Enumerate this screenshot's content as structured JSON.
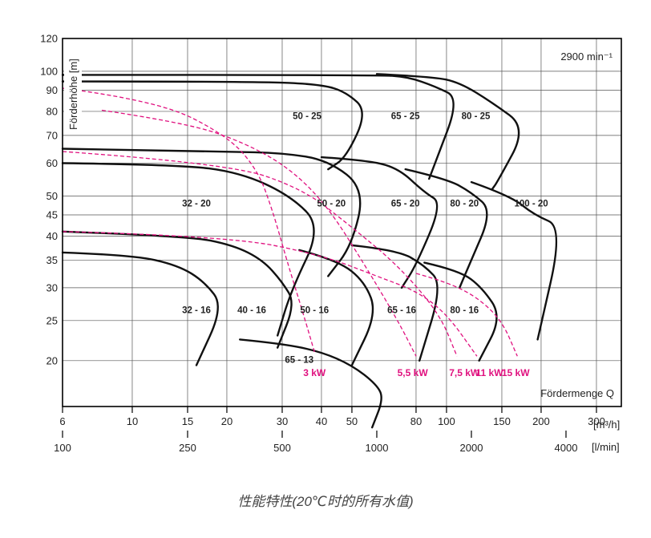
{
  "caption": "性能特性(20℃时的所有水值)",
  "chart_data": {
    "type": "line",
    "title": "",
    "speed_label": "2900 min⁻¹",
    "ylabel": "Förderhöhe [m]",
    "xlabel": "Fördermenge Q",
    "x_unit_primary": "[m³/h]",
    "x_unit_secondary": "[l/min]",
    "ylim": [
      15.5,
      120
    ],
    "xlim_m3h": [
      6,
      360
    ],
    "y_scale": "log",
    "x_scale": "log",
    "grid": true,
    "y_ticks": [
      120,
      100,
      90,
      80,
      70,
      60,
      50,
      45,
      40,
      35,
      30,
      25,
      20
    ],
    "x_ticks_primary": [
      6,
      10,
      15,
      20,
      30,
      40,
      50,
      80,
      100,
      150,
      200,
      300
    ],
    "x_ticks_primary_labels": [
      "6",
      "10",
      "15",
      "20",
      "30",
      "40",
      "50",
      "80",
      "100",
      "150",
      "200",
      "300"
    ],
    "x_ticks_secondary": [
      100,
      250,
      500,
      1000,
      2000,
      4000
    ],
    "x_ticks_secondary_labels": [
      "100",
      "250",
      "500",
      "1000",
      "2000",
      "4000"
    ],
    "pump_labels": [
      {
        "name": "50 - 25",
        "q": 36,
        "h": 78
      },
      {
        "name": "65 - 25",
        "q": 74,
        "h": 78
      },
      {
        "name": "80 - 25",
        "q": 124,
        "h": 78
      },
      {
        "name": "32 - 20",
        "q": 16,
        "h": 48
      },
      {
        "name": "50 - 20",
        "q": 43,
        "h": 48
      },
      {
        "name": "65 - 20",
        "q": 74,
        "h": 48
      },
      {
        "name": "80 - 20",
        "q": 114,
        "h": 48
      },
      {
        "name": "100 - 20",
        "q": 186,
        "h": 48
      },
      {
        "name": "32 - 16",
        "q": 16,
        "h": 26.5
      },
      {
        "name": "40 - 16",
        "q": 24,
        "h": 26.5
      },
      {
        "name": "50 - 16",
        "q": 38,
        "h": 26.5
      },
      {
        "name": "65 - 16",
        "q": 72,
        "h": 26.5
      },
      {
        "name": "80 - 16",
        "q": 114,
        "h": 26.5
      },
      {
        "name": "65 - 13",
        "q": 34,
        "h": 20.1
      }
    ],
    "power_labels": [
      {
        "name": "3 kW",
        "q": 38,
        "h": 18.7
      },
      {
        "name": "5,5 kW",
        "q": 78,
        "h": 18.7
      },
      {
        "name": "7,5 kW",
        "q": 114,
        "h": 18.7
      },
      {
        "name": "11 kW",
        "q": 137,
        "h": 18.7
      },
      {
        "name": "15 kW",
        "q": 166,
        "h": 18.7
      }
    ],
    "series": [
      {
        "name": "32 - 16",
        "kind": "pump",
        "points": [
          [
            6,
            36.5
          ],
          [
            10,
            36
          ],
          [
            14,
            34
          ],
          [
            17,
            31
          ],
          [
            19.5,
            27
          ],
          [
            16,
            19.5
          ]
        ]
      },
      {
        "name": "40 - 16",
        "kind": "pump",
        "points": [
          [
            6,
            41
          ],
          [
            15,
            40
          ],
          [
            21,
            38
          ],
          [
            26,
            35
          ],
          [
            30,
            31
          ],
          [
            33,
            27.5
          ],
          [
            29,
            21.5
          ]
        ]
      },
      {
        "name": "50 - 16",
        "kind": "pump",
        "points": [
          [
            22,
            22.5
          ],
          [
            30,
            22
          ],
          [
            40,
            21
          ],
          [
            50,
            19.5
          ],
          [
            60,
            17.5
          ],
          [
            63,
            16.2
          ],
          [
            58,
            13.8
          ]
        ]
      },
      {
        "name": "50 - 16 top",
        "kind": "pump",
        "points": [
          [
            34,
            37
          ],
          [
            45,
            35
          ],
          [
            55,
            31
          ],
          [
            60,
            26
          ],
          [
            50,
            19.5
          ]
        ]
      },
      {
        "name": "65 - 16",
        "kind": "pump",
        "points": [
          [
            50,
            38
          ],
          [
            70,
            37
          ],
          [
            85,
            34
          ],
          [
            97,
            30.5
          ],
          [
            82,
            20
          ]
        ]
      },
      {
        "name": "80 - 16",
        "kind": "pump",
        "points": [
          [
            85,
            34.5
          ],
          [
            110,
            33
          ],
          [
            130,
            30
          ],
          [
            150,
            25.5
          ],
          [
            127,
            20
          ]
        ]
      },
      {
        "name": "32 - 20",
        "kind": "pump",
        "points": [
          [
            6,
            60
          ],
          [
            14,
            59.5
          ],
          [
            22,
            57
          ],
          [
            32,
            50
          ],
          [
            40,
            42
          ],
          [
            32,
            29.5
          ],
          [
            29,
            23
          ]
        ]
      },
      {
        "name": "50 - 20",
        "kind": "pump",
        "points": [
          [
            6,
            65
          ],
          [
            20,
            64
          ],
          [
            30,
            63.5
          ],
          [
            42,
            61
          ],
          [
            55,
            52
          ],
          [
            50,
            38
          ],
          [
            42,
            32
          ]
        ]
      },
      {
        "name": "65 - 20",
        "kind": "pump",
        "points": [
          [
            40,
            62
          ],
          [
            55,
            61
          ],
          [
            70,
            58.5
          ],
          [
            85,
            51
          ],
          [
            97,
            48
          ],
          [
            80,
            34
          ],
          [
            72,
            30
          ]
        ]
      },
      {
        "name": "80 - 20",
        "kind": "pump",
        "points": [
          [
            74,
            58
          ],
          [
            100,
            55
          ],
          [
            120,
            51
          ],
          [
            140,
            46
          ],
          [
            118,
            34
          ],
          [
            110,
            30
          ]
        ]
      },
      {
        "name": "100 - 20",
        "kind": "pump",
        "points": [
          [
            120,
            54
          ],
          [
            160,
            50
          ],
          [
            190,
            45
          ],
          [
            235,
            42
          ],
          [
            195,
            22.5
          ]
        ]
      },
      {
        "name": "50 - 25",
        "kind": "pump",
        "points": [
          [
            6,
            94.5
          ],
          [
            25,
            94.5
          ],
          [
            40,
            93
          ],
          [
            48,
            89
          ],
          [
            56,
            80
          ],
          [
            48,
            62
          ],
          [
            42,
            58
          ]
        ]
      },
      {
        "name": "65 - 25",
        "kind": "pump",
        "points": [
          [
            6,
            98
          ],
          [
            60,
            98
          ],
          [
            75,
            97
          ],
          [
            92,
            92
          ],
          [
            110,
            86
          ],
          [
            92,
            60
          ],
          [
            88,
            55
          ]
        ]
      },
      {
        "name": "80 - 25",
        "kind": "pump",
        "points": [
          [
            60,
            98.5
          ],
          [
            90,
            97
          ],
          [
            110,
            94
          ],
          [
            140,
            84
          ],
          [
            180,
            73
          ],
          [
            145,
            54
          ],
          [
            140,
            52
          ]
        ]
      },
      {
        "name": "3 kW",
        "kind": "power",
        "points": [
          [
            6,
            91
          ],
          [
            12,
            85
          ],
          [
            20,
            70
          ],
          [
            25,
            58
          ],
          [
            28,
            46
          ],
          [
            31,
            35
          ],
          [
            35,
            26
          ],
          [
            38,
            21
          ]
        ]
      },
      {
        "name": "5,5 kW",
        "kind": "power",
        "points": [
          [
            8,
            80.5
          ],
          [
            15,
            75
          ],
          [
            23,
            67
          ],
          [
            32,
            58
          ],
          [
            42,
            47
          ],
          [
            55,
            34
          ],
          [
            70,
            25
          ],
          [
            80,
            20.5
          ]
        ]
      },
      {
        "name": "7,5 kW",
        "kind": "power",
        "points": [
          [
            6,
            64
          ],
          [
            20,
            60
          ],
          [
            35,
            52
          ],
          [
            50,
            42
          ],
          [
            70,
            34
          ],
          [
            95,
            26
          ],
          [
            108,
            20.5
          ]
        ]
      },
      {
        "name": "11 kW",
        "kind": "power",
        "points": [
          [
            6,
            41
          ],
          [
            20,
            40
          ],
          [
            40,
            36
          ],
          [
            60,
            32
          ],
          [
            80,
            29.5
          ],
          [
            100,
            26
          ],
          [
            125,
            20.5
          ]
        ]
      },
      {
        "name": "15 kW",
        "kind": "power",
        "points": [
          [
            80,
            32.5
          ],
          [
            100,
            31
          ],
          [
            125,
            28.5
          ],
          [
            150,
            25
          ],
          [
            168,
            20.5
          ]
        ]
      }
    ]
  }
}
